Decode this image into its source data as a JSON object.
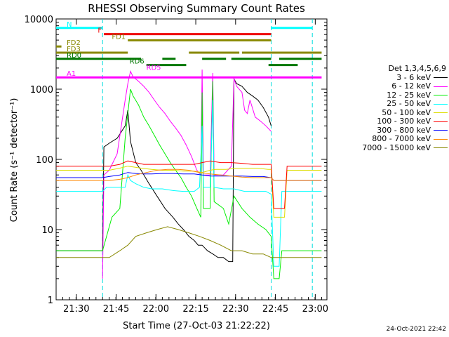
{
  "chart_data": {
    "type": "line",
    "title": "RHESSI Observing Summary Count Rates",
    "xlabel": "Start Time (27-Oct-03 21:22:22)",
    "ylabel": "Count Rate (s⁻¹ detector⁻¹)",
    "yscale": "log",
    "ylim": [
      1,
      10000
    ],
    "xlim_min": [
      0,
      102
    ],
    "x_ticks": [
      {
        "t": 7.6,
        "label": "21:30"
      },
      {
        "t": 22.6,
        "label": "21:45"
      },
      {
        "t": 37.6,
        "label": "22:00"
      },
      {
        "t": 52.6,
        "label": "22:15"
      },
      {
        "t": 67.6,
        "label": "22:30"
      },
      {
        "t": 82.6,
        "label": "22:45"
      },
      {
        "t": 97.6,
        "label": "23:00"
      }
    ],
    "y_ticks": [
      {
        "v": 1,
        "label": "1"
      },
      {
        "v": 10,
        "label": "10"
      },
      {
        "v": 100,
        "label": "100"
      },
      {
        "v": 1000,
        "label": "1000"
      },
      {
        "v": 10000,
        "label": "10000"
      }
    ],
    "vlines": [
      17.5,
      81.0,
      96.5
    ],
    "legend_title": "Det 1,3,4,5,6,9",
    "series": [
      {
        "name": "3 - 6 keV",
        "color": "#000000",
        "points": [
          [
            0,
            5
          ],
          [
            17.5,
            5
          ],
          [
            18,
            150
          ],
          [
            20,
            170
          ],
          [
            23,
            200
          ],
          [
            26,
            300
          ],
          [
            27,
            500
          ],
          [
            28,
            180
          ],
          [
            30,
            90
          ],
          [
            32,
            70
          ],
          [
            35,
            45
          ],
          [
            38,
            30
          ],
          [
            41,
            20
          ],
          [
            44,
            15
          ],
          [
            46,
            12
          ],
          [
            48,
            10
          ],
          [
            50,
            8
          ],
          [
            52,
            7
          ],
          [
            53.5,
            6
          ],
          [
            55,
            6
          ],
          [
            57,
            5
          ],
          [
            59,
            4.5
          ],
          [
            61,
            4
          ],
          [
            63,
            4
          ],
          [
            65,
            3.5
          ],
          [
            66.5,
            3.5
          ],
          [
            67,
            1400
          ],
          [
            68,
            1200
          ],
          [
            70,
            1100
          ],
          [
            72,
            900
          ],
          [
            74,
            800
          ],
          [
            76,
            700
          ],
          [
            78,
            550
          ],
          [
            80,
            400
          ],
          [
            81,
            300
          ]
        ]
      },
      {
        "name": "6 - 12 keV",
        "color": "#ff00ff",
        "points": [
          [
            17.5,
            2
          ],
          [
            18,
            60
          ],
          [
            20,
            70
          ],
          [
            23,
            120
          ],
          [
            26,
            700
          ],
          [
            27,
            1200
          ],
          [
            28,
            1800
          ],
          [
            29,
            1500
          ],
          [
            31,
            1300
          ],
          [
            33,
            1100
          ],
          [
            35,
            900
          ],
          [
            37,
            700
          ],
          [
            39,
            550
          ],
          [
            41,
            450
          ],
          [
            43,
            350
          ],
          [
            45,
            280
          ],
          [
            47,
            220
          ],
          [
            49,
            160
          ],
          [
            51,
            110
          ],
          [
            53,
            70
          ],
          [
            54.5,
            60
          ],
          [
            55,
            1900
          ],
          [
            55.5,
            60
          ],
          [
            58,
            60
          ],
          [
            59,
            1700
          ],
          [
            59.5,
            60
          ],
          [
            63,
            60
          ],
          [
            66,
            80
          ],
          [
            67,
            1400
          ],
          [
            68,
            1100
          ],
          [
            70,
            900
          ],
          [
            71,
            500
          ],
          [
            72,
            450
          ],
          [
            73,
            700
          ],
          [
            75,
            400
          ],
          [
            77,
            350
          ],
          [
            79,
            300
          ],
          [
            81,
            250
          ]
        ]
      },
      {
        "name": "12 - 25 keV",
        "color": "#00ee00",
        "points": [
          [
            0,
            5
          ],
          [
            17.5,
            5
          ],
          [
            21,
            15
          ],
          [
            24,
            20
          ],
          [
            26,
            200
          ],
          [
            28,
            1000
          ],
          [
            29,
            800
          ],
          [
            31,
            600
          ],
          [
            33,
            400
          ],
          [
            35,
            300
          ],
          [
            37,
            220
          ],
          [
            39,
            160
          ],
          [
            41,
            120
          ],
          [
            43,
            90
          ],
          [
            45,
            70
          ],
          [
            47,
            55
          ],
          [
            49,
            40
          ],
          [
            51,
            30
          ],
          [
            53,
            20
          ],
          [
            54.5,
            15
          ],
          [
            55,
            900
          ],
          [
            55.5,
            20
          ],
          [
            58,
            20
          ],
          [
            59,
            1300
          ],
          [
            59.5,
            25
          ],
          [
            63,
            20
          ],
          [
            65,
            12
          ],
          [
            67,
            30
          ],
          [
            70,
            20
          ],
          [
            73,
            15
          ],
          [
            76,
            12
          ],
          [
            79,
            10
          ],
          [
            81,
            8
          ],
          [
            82,
            2
          ],
          [
            84,
            2
          ],
          [
            85,
            5
          ],
          [
            100,
            5
          ]
        ]
      },
      {
        "name": "25 - 50 keV",
        "color": "#00ffff",
        "points": [
          [
            0,
            35
          ],
          [
            17.5,
            35
          ],
          [
            19,
            40
          ],
          [
            22,
            40
          ],
          [
            26,
            40
          ],
          [
            27,
            60
          ],
          [
            28,
            50
          ],
          [
            30,
            45
          ],
          [
            33,
            40
          ],
          [
            36,
            38
          ],
          [
            40,
            38
          ],
          [
            44,
            36
          ],
          [
            48,
            35
          ],
          [
            52,
            35
          ],
          [
            54,
            40
          ],
          [
            55,
            300
          ],
          [
            55.5,
            40
          ],
          [
            58,
            40
          ],
          [
            59,
            700
          ],
          [
            59.5,
            40
          ],
          [
            63,
            38
          ],
          [
            67,
            38
          ],
          [
            71,
            35
          ],
          [
            75,
            35
          ],
          [
            79,
            35
          ],
          [
            81,
            32
          ],
          [
            82,
            3
          ],
          [
            84,
            3
          ],
          [
            85,
            35
          ],
          [
            100,
            35
          ]
        ]
      },
      {
        "name": "50 - 100 keV",
        "color": "#dddd00",
        "points": [
          [
            0,
            70
          ],
          [
            17.5,
            70
          ],
          [
            20,
            70
          ],
          [
            24,
            75
          ],
          [
            27,
            80
          ],
          [
            29,
            78
          ],
          [
            32,
            75
          ],
          [
            36,
            72
          ],
          [
            40,
            70
          ],
          [
            44,
            70
          ],
          [
            48,
            68
          ],
          [
            52,
            68
          ],
          [
            55,
            65
          ],
          [
            58,
            70
          ],
          [
            60,
            72
          ],
          [
            64,
            72
          ],
          [
            68,
            75
          ],
          [
            72,
            75
          ],
          [
            76,
            75
          ],
          [
            80,
            72
          ],
          [
            81,
            72
          ],
          [
            82,
            15
          ],
          [
            86,
            15
          ],
          [
            87,
            70
          ],
          [
            100,
            70
          ]
        ]
      },
      {
        "name": "100 - 300 keV",
        "color": "#ff0000",
        "points": [
          [
            0,
            80
          ],
          [
            17.5,
            80
          ],
          [
            20,
            80
          ],
          [
            24,
            85
          ],
          [
            27,
            95
          ],
          [
            30,
            90
          ],
          [
            33,
            85
          ],
          [
            36,
            85
          ],
          [
            40,
            85
          ],
          [
            44,
            85
          ],
          [
            48,
            85
          ],
          [
            52,
            85
          ],
          [
            55,
            90
          ],
          [
            58,
            95
          ],
          [
            62,
            90
          ],
          [
            66,
            90
          ],
          [
            70,
            88
          ],
          [
            74,
            85
          ],
          [
            78,
            85
          ],
          [
            81,
            85
          ],
          [
            82,
            20
          ],
          [
            86,
            20
          ],
          [
            87,
            80
          ],
          [
            100,
            80
          ]
        ]
      },
      {
        "name": "300 - 800 keV",
        "color": "#0000ff",
        "points": [
          [
            0,
            55
          ],
          [
            17.5,
            55
          ],
          [
            20,
            57
          ],
          [
            24,
            60
          ],
          [
            27,
            65
          ],
          [
            30,
            63
          ],
          [
            33,
            62
          ],
          [
            36,
            62
          ],
          [
            40,
            63
          ],
          [
            44,
            63
          ],
          [
            48,
            62
          ],
          [
            52,
            62
          ],
          [
            55,
            60
          ],
          [
            58,
            58
          ],
          [
            62,
            58
          ],
          [
            66,
            58
          ],
          [
            70,
            58
          ],
          [
            74,
            57
          ],
          [
            78,
            57
          ],
          [
            81,
            55
          ],
          [
            82,
            50
          ],
          [
            100,
            50
          ]
        ]
      },
      {
        "name": "800 - 7000 keV",
        "color": "#ff8800",
        "points": [
          [
            0,
            50
          ],
          [
            17.5,
            50
          ],
          [
            20,
            50
          ],
          [
            24,
            52
          ],
          [
            27,
            55
          ],
          [
            30,
            60
          ],
          [
            34,
            65
          ],
          [
            38,
            70
          ],
          [
            42,
            72
          ],
          [
            46,
            72
          ],
          [
            50,
            70
          ],
          [
            54,
            65
          ],
          [
            58,
            62
          ],
          [
            62,
            60
          ],
          [
            66,
            58
          ],
          [
            70,
            56
          ],
          [
            74,
            55
          ],
          [
            78,
            55
          ],
          [
            81,
            55
          ],
          [
            82,
            50
          ],
          [
            100,
            50
          ]
        ]
      },
      {
        "name": "7000 - 15000 keV",
        "color": "#888800",
        "points": [
          [
            0,
            4
          ],
          [
            17.5,
            4
          ],
          [
            20,
            4
          ],
          [
            24,
            5
          ],
          [
            27,
            6
          ],
          [
            30,
            8
          ],
          [
            34,
            9
          ],
          [
            38,
            10
          ],
          [
            42,
            11
          ],
          [
            46,
            10
          ],
          [
            50,
            9
          ],
          [
            54,
            8
          ],
          [
            58,
            7
          ],
          [
            62,
            6
          ],
          [
            66,
            5
          ],
          [
            70,
            5
          ],
          [
            74,
            4.5
          ],
          [
            78,
            4.5
          ],
          [
            81,
            4
          ],
          [
            100,
            4
          ]
        ]
      }
    ],
    "bars": [
      {
        "label": "N",
        "color": "#00ffff",
        "row": 1,
        "segments": [
          [
            0,
            17.5
          ],
          [
            81,
            96.5
          ]
        ]
      },
      {
        "label": "F",
        "color": "#ee0000",
        "row": 2,
        "segments": [
          [
            18,
            81
          ]
        ]
      },
      {
        "label": "FD1",
        "color": "#888800",
        "row": 3,
        "segments": [
          [
            27,
            81
          ]
        ]
      },
      {
        "label": "FD2",
        "color": "#888800",
        "row": 4,
        "segments": [
          [
            0,
            2
          ]
        ]
      },
      {
        "label": "FD3",
        "color": "#888800",
        "row": 5,
        "segments": [
          [
            0,
            27
          ],
          [
            50,
            69
          ],
          [
            70,
            100
          ]
        ]
      },
      {
        "label": "RD0",
        "color": "#007700",
        "row": 6,
        "segments": [
          [
            0,
            32
          ],
          [
            40,
            45
          ],
          [
            55,
            64
          ],
          [
            66,
            81
          ],
          [
            84,
            100
          ]
        ]
      },
      {
        "label": "RD6",
        "color": "#007700",
        "row": 7,
        "segments": [
          [
            34,
            49
          ],
          [
            80,
            91
          ]
        ]
      },
      {
        "label": "RD5",
        "color": "#ff00ff",
        "row": 8,
        "segments": []
      },
      {
        "label": "A1",
        "color": "#ff00ff",
        "row": 9,
        "segments": [
          [
            0,
            100
          ]
        ]
      }
    ]
  },
  "footer": {
    "timestamp": "24-Oct-2021 22:42"
  }
}
